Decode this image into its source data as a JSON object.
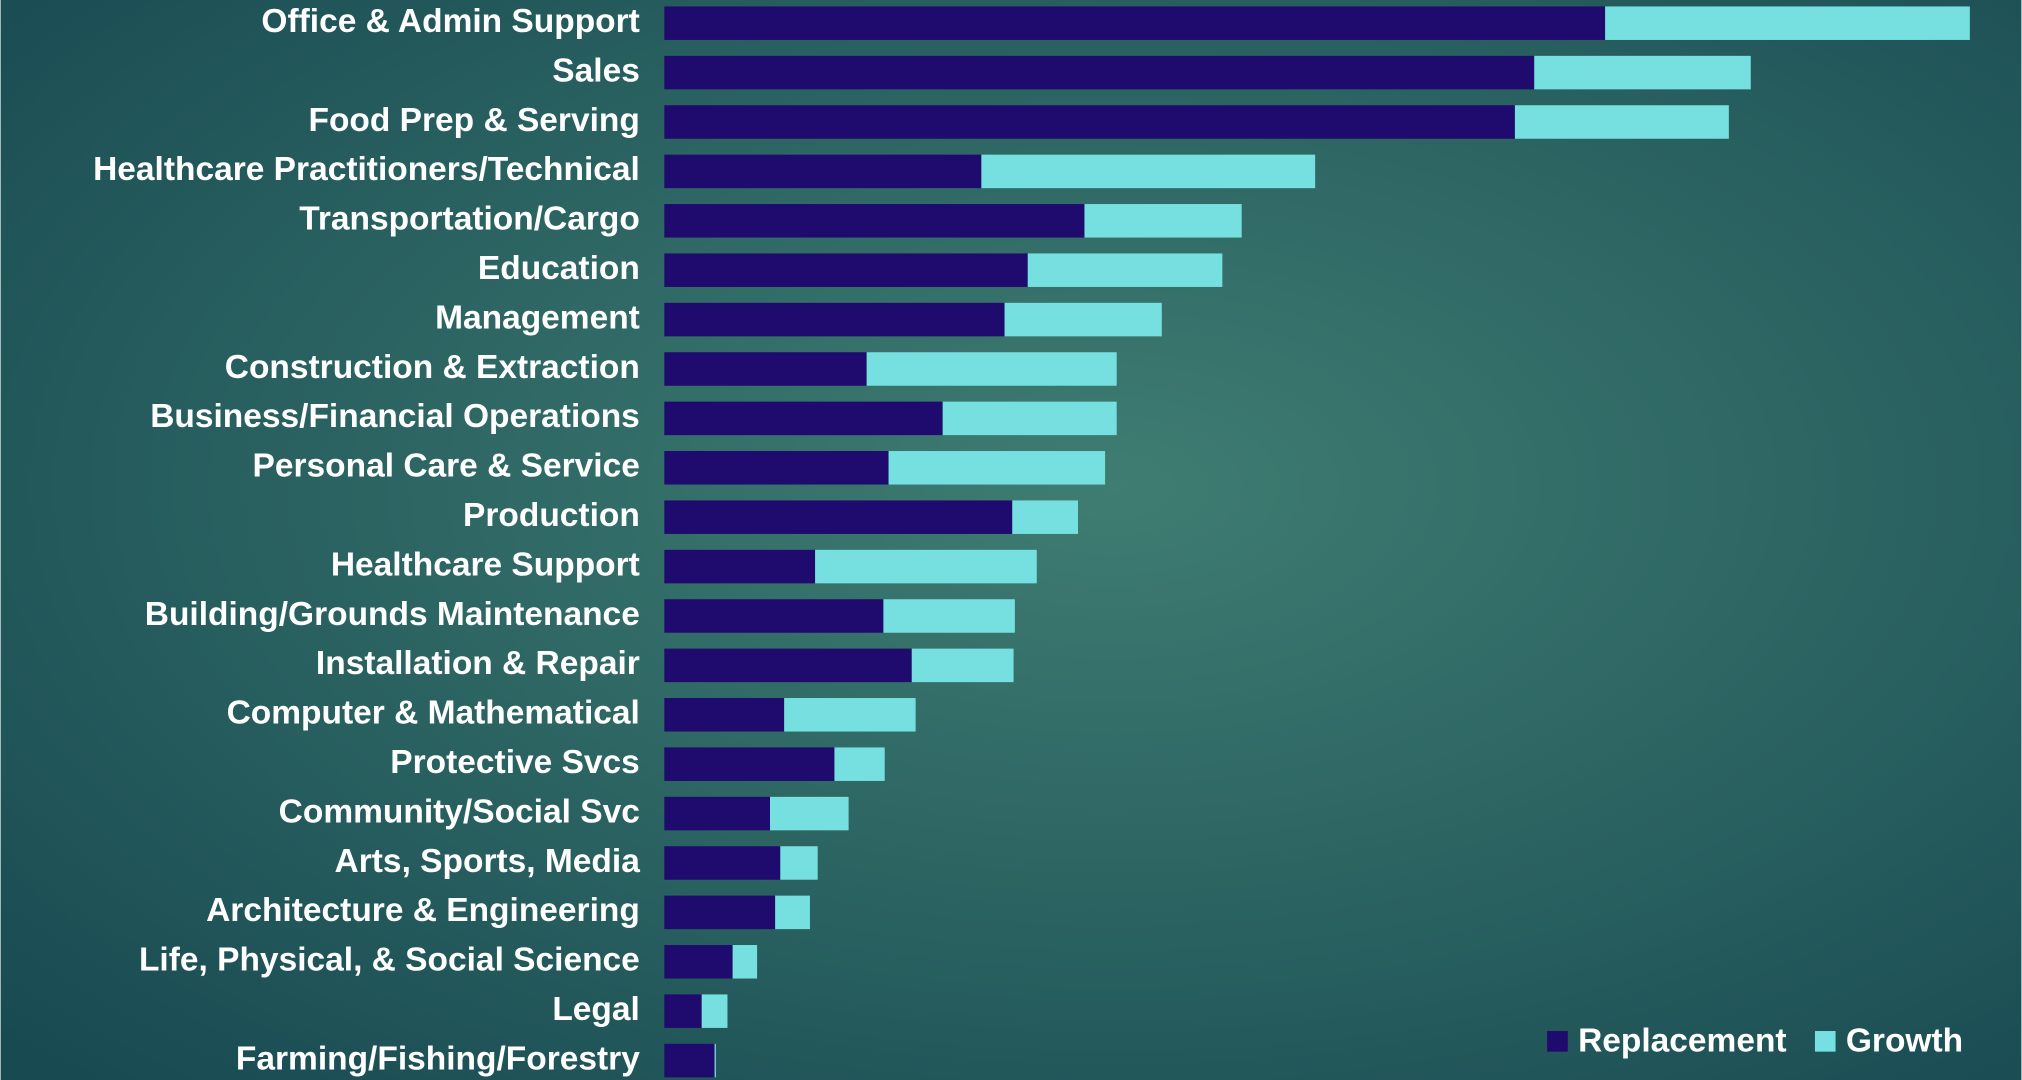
{
  "chart_data": {
    "type": "stacked_barh",
    "categories": [
      "Office & Admin Support",
      "Sales",
      "Food Prep & Serving",
      "Healthcare Practitioners/Technical",
      "Transportation/Cargo",
      "Education",
      "Management",
      "Construction & Extraction",
      "Business/Financial Operations",
      "Personal Care & Service",
      "Production",
      "Healthcare Support",
      "Building/Grounds Maintenance",
      "Installation & Repair",
      "Computer & Mathematical",
      "Protective Svcs",
      "Community/Social Svc",
      "Arts, Sports, Media",
      "Architecture & Engineering",
      "Life, Physical, & Social Science",
      "Legal",
      "Farming/Fishing/Forestry"
    ],
    "series": [
      {
        "name": "Replacement",
        "color": "#1f0a6e",
        "values": [
          73,
          67.5,
          66,
          24.6,
          32.6,
          28.2,
          26.4,
          15.7,
          21.6,
          17.4,
          27,
          11.7,
          17,
          19.2,
          9.3,
          13.2,
          8.2,
          9,
          8.6,
          5.3,
          2.9,
          3.9
        ]
      },
      {
        "name": "Growth",
        "color": "#76e0e0",
        "values": [
          28.3,
          16.8,
          16.6,
          25.9,
          12.2,
          15.1,
          12.2,
          19.4,
          13.5,
          16.8,
          5.1,
          17.2,
          10.2,
          7.9,
          10.2,
          3.9,
          6.1,
          2.9,
          2.7,
          1.9,
          2,
          0.1
        ]
      }
    ],
    "xlim": [
      0,
      105
    ],
    "legend": "lower right"
  }
}
